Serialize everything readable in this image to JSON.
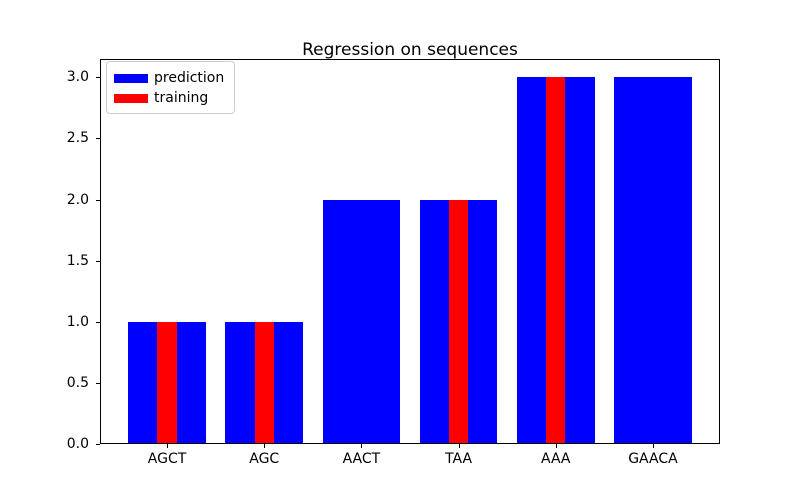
{
  "chart_data": {
    "type": "bar",
    "title": "Regression on sequences",
    "categories": [
      "AGCT",
      "AGC",
      "AACT",
      "TAA",
      "AAA",
      "GAACA"
    ],
    "series": [
      {
        "name": "prediction",
        "color": "#0000ff",
        "bar_width": 0.8,
        "values": [
          1.0,
          1.0,
          2.0,
          2.0,
          3.0,
          3.0
        ]
      },
      {
        "name": "training",
        "color": "#ff0000",
        "bar_width": 0.2,
        "values": [
          1.0,
          1.0,
          null,
          2.0,
          3.0,
          null
        ]
      }
    ],
    "xlabel": "",
    "ylabel": "",
    "xlim": [
      -0.69,
      5.69
    ],
    "ylim": [
      0,
      3.15
    ],
    "yticks": [
      "0.0",
      "0.5",
      "1.0",
      "1.5",
      "2.0",
      "2.5",
      "3.0"
    ],
    "grid": false,
    "legend_position": "upper left",
    "background": "#ffffff",
    "axis_color": "#000000"
  }
}
